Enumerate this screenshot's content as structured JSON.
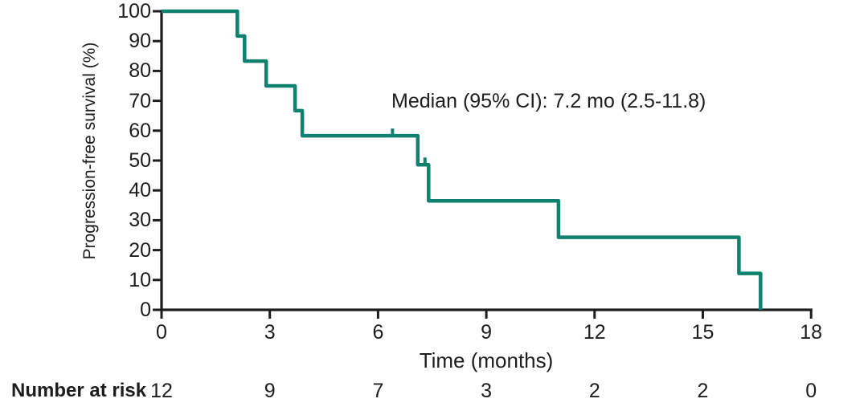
{
  "colors": {
    "curve": "#10816F",
    "axis": "#1d1d1b",
    "text": "#1d1d1b",
    "background": "#ffffff"
  },
  "chart_data": {
    "type": "line",
    "subtype": "kaplan-meier-step-curve",
    "title": "",
    "xlabel": "Time (months)",
    "ylabel": "Progression-free survival (%)",
    "annotation": "Median (95% CI): 7.2 mo (2.5-11.8)",
    "xlim": [
      0,
      18
    ],
    "ylim": [
      0,
      100
    ],
    "x_ticks": [
      0,
      3,
      6,
      9,
      12,
      15,
      18
    ],
    "y_ticks": [
      0,
      10,
      20,
      30,
      40,
      50,
      60,
      70,
      80,
      90,
      100
    ],
    "grid": false,
    "legend": "none",
    "series": [
      {
        "name": "Progression-free survival",
        "color": "#10816F",
        "step_points": [
          [
            0,
            100
          ],
          [
            2.1,
            100
          ],
          [
            2.1,
            91.7
          ],
          [
            2.3,
            91.7
          ],
          [
            2.3,
            83.3
          ],
          [
            2.9,
            83.3
          ],
          [
            2.9,
            75
          ],
          [
            3.7,
            75
          ],
          [
            3.7,
            66.7
          ],
          [
            3.9,
            66.7
          ],
          [
            3.9,
            58.3
          ],
          [
            7.1,
            58.3
          ],
          [
            7.1,
            48.6
          ],
          [
            7.4,
            48.6
          ],
          [
            7.4,
            36.5
          ],
          [
            11,
            36.5
          ],
          [
            11,
            24.3
          ],
          [
            16,
            24.3
          ],
          [
            16,
            12.2
          ],
          [
            16.6,
            12.2
          ],
          [
            16.6,
            0
          ]
        ],
        "event_times_months": [
          2.1,
          2.3,
          2.9,
          3.7,
          3.9,
          7.1,
          7.4,
          11,
          16,
          16.6
        ],
        "censor_marks": [
          [
            6.4,
            58.3
          ],
          [
            7.3,
            48.6
          ]
        ],
        "median_months": 7.2,
        "ci95": [
          2.5,
          11.8
        ]
      }
    ],
    "number_at_risk": {
      "label": "Number at risk",
      "times": [
        0,
        3,
        6,
        9,
        12,
        15,
        18
      ],
      "values": [
        12,
        9,
        7,
        3,
        2,
        2,
        0
      ]
    }
  }
}
